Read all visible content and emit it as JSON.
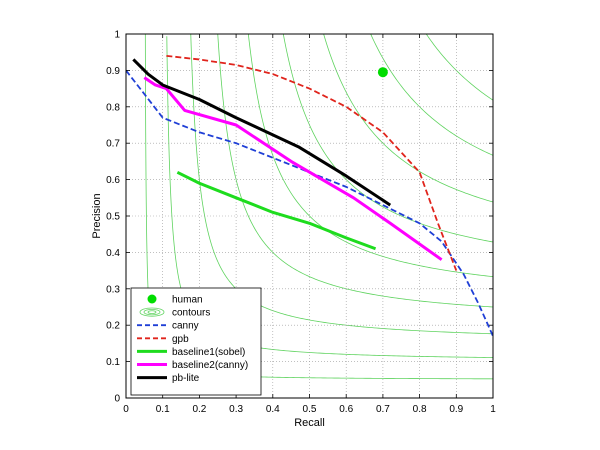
{
  "chart_data": {
    "type": "line",
    "title": "",
    "xlabel": "Recall",
    "ylabel": "Precision",
    "xlim": [
      0,
      1
    ],
    "ylim": [
      0,
      1
    ],
    "xticks": [
      "0",
      "0.1",
      "0.2",
      "0.3",
      "0.4",
      "0.5",
      "0.6",
      "0.7",
      "0.8",
      "0.9",
      "1"
    ],
    "yticks": [
      "0",
      "0.1",
      "0.2",
      "0.3",
      "0.4",
      "0.5",
      "0.6",
      "0.7",
      "0.8",
      "0.9",
      "1"
    ],
    "grid": true,
    "legend_position": "bottom-left",
    "contours": {
      "name": "contours",
      "color": "#5fd35f",
      "f_levels": [
        0.1,
        0.2,
        0.3,
        0.4,
        0.5,
        0.6,
        0.7,
        0.8,
        0.9
      ]
    },
    "human": {
      "name": "human",
      "x": 0.7,
      "y": 0.895,
      "color": "#00dd00"
    },
    "series": [
      {
        "name": "canny",
        "color": "#1f3fd6",
        "dash": "dashed",
        "x": [
          0.0,
          0.1,
          0.2,
          0.3,
          0.4,
          0.5,
          0.6,
          0.7,
          0.8,
          0.86,
          0.92,
          0.96,
          1.0
        ],
        "y": [
          0.9,
          0.77,
          0.73,
          0.7,
          0.66,
          0.62,
          0.58,
          0.53,
          0.48,
          0.43,
          0.34,
          0.26,
          0.17
        ]
      },
      {
        "name": "gpb",
        "color": "#e0241c",
        "dash": "dashed",
        "x": [
          0.11,
          0.2,
          0.3,
          0.4,
          0.5,
          0.6,
          0.7,
          0.8,
          0.85,
          0.9
        ],
        "y": [
          0.94,
          0.93,
          0.915,
          0.89,
          0.85,
          0.8,
          0.73,
          0.62,
          0.48,
          0.35
        ]
      },
      {
        "name": "baseline1(sobel)",
        "color": "#1edc1e",
        "dash": "solid",
        "x": [
          0.14,
          0.2,
          0.3,
          0.4,
          0.5,
          0.6,
          0.68
        ],
        "y": [
          0.62,
          0.59,
          0.55,
          0.51,
          0.48,
          0.44,
          0.41
        ]
      },
      {
        "name": "baseline2(canny)",
        "color": "#ff00ff",
        "dash": "solid",
        "x": [
          0.05,
          0.08,
          0.11,
          0.16,
          0.3,
          0.45,
          0.62,
          0.72,
          0.86
        ],
        "y": [
          0.88,
          0.86,
          0.85,
          0.79,
          0.75,
          0.65,
          0.55,
          0.48,
          0.38
        ]
      },
      {
        "name": "pb-lite",
        "color": "#000000",
        "dash": "solid",
        "x": [
          0.02,
          0.06,
          0.1,
          0.2,
          0.3,
          0.47,
          0.6,
          0.72
        ],
        "y": [
          0.93,
          0.89,
          0.86,
          0.82,
          0.77,
          0.69,
          0.61,
          0.53
        ]
      }
    ]
  }
}
